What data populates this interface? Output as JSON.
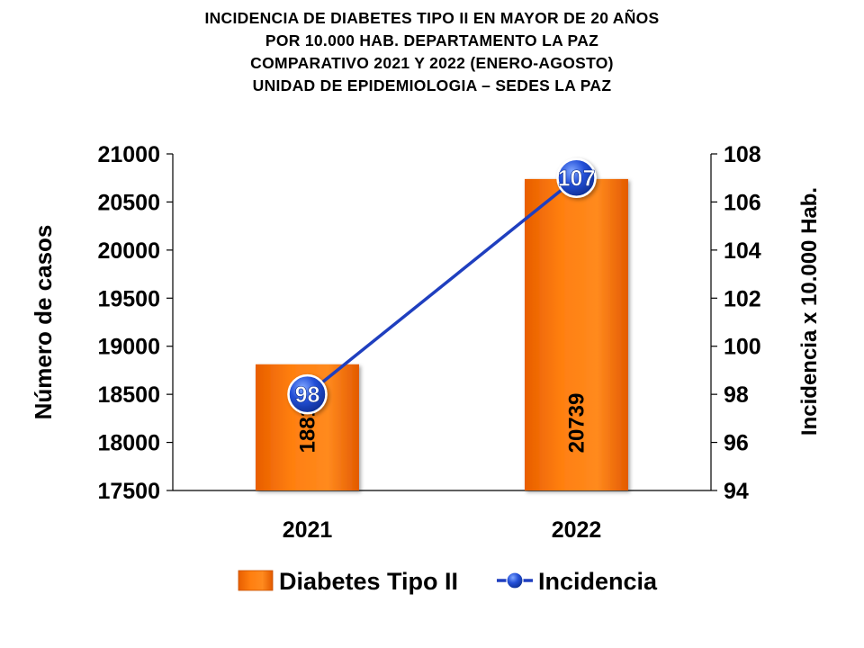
{
  "title_lines": [
    "INCIDENCIA  DE  DIABETES  TIPO  II  EN  MAYOR  DE  20  AÑOS",
    "POR  10.000  HAB.  DEPARTAMENTO  LA  PAZ",
    "COMPARATIVO  2021  Y  2022  (ENERO-AGOSTO)",
    "UNIDAD DE EPIDEMIOLOGIA – SEDES LA PAZ"
  ],
  "chart_data": {
    "type": "bar",
    "categories": [
      "2021",
      "2022"
    ],
    "series": [
      {
        "name": "Diabetes Tipo II",
        "kind": "bar",
        "axis": "left",
        "values": [
          18812,
          20739
        ],
        "color": "#FF7F00"
      },
      {
        "name": "Incidencia",
        "kind": "line",
        "axis": "right",
        "values": [
          98,
          107
        ],
        "color": "#1F3FBF"
      }
    ],
    "ylabel": "Número de casos",
    "y2label": "Incidencia x 10.000 Hab.",
    "ylim": [
      17500,
      21000
    ],
    "y2lim": [
      94,
      108
    ],
    "yticks": [
      17500,
      18000,
      18500,
      19000,
      19500,
      20000,
      20500,
      21000
    ],
    "y2ticks": [
      94,
      96,
      98,
      100,
      102,
      104,
      106,
      108
    ],
    "grid": false,
    "legend_position": "bottom"
  }
}
